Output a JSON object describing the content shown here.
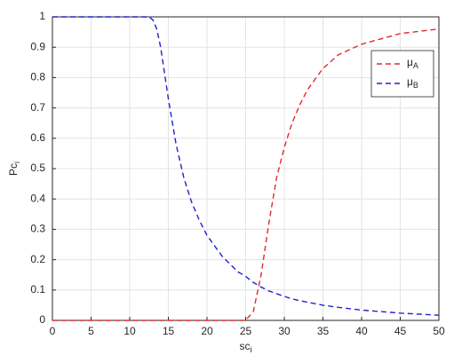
{
  "chart_data": {
    "type": "line",
    "xlabel": "sci",
    "ylabel": "Pci",
    "x": [
      0,
      5,
      10,
      12,
      12.5,
      13,
      13.5,
      14,
      15,
      16,
      17,
      18,
      19,
      20,
      22,
      24,
      25,
      26,
      27,
      28,
      29,
      30,
      31,
      32,
      33,
      35,
      37,
      40,
      45,
      50
    ],
    "series": [
      {
        "name": "μA",
        "color": "#e0292d",
        "values": [
          0,
          0,
          0,
          0,
          0,
          0,
          0,
          0,
          0,
          0,
          0,
          0,
          0,
          0,
          0,
          0,
          0,
          0.03,
          0.15,
          0.32,
          0.47,
          0.57,
          0.65,
          0.71,
          0.76,
          0.83,
          0.875,
          0.91,
          0.945,
          0.96
        ]
      },
      {
        "name": "μB",
        "color": "#2222cc",
        "values": [
          1,
          1,
          1,
          1,
          1,
          0.99,
          0.96,
          0.9,
          0.73,
          0.58,
          0.47,
          0.39,
          0.33,
          0.28,
          0.21,
          0.16,
          0.145,
          0.125,
          0.11,
          0.097,
          0.088,
          0.079,
          0.071,
          0.065,
          0.06,
          0.05,
          0.043,
          0.034,
          0.024,
          0.017
        ]
      }
    ],
    "xlim": [
      0,
      50
    ],
    "xticks": [
      0,
      5,
      10,
      15,
      20,
      25,
      30,
      35,
      40,
      45,
      50
    ],
    "ylim": [
      0,
      1
    ],
    "yticks": [
      0,
      0.1,
      0.2,
      0.3,
      0.4,
      0.5,
      0.6,
      0.7,
      0.8,
      0.9,
      1
    ],
    "grid": true,
    "legend": "northeast",
    "dashed": true
  }
}
